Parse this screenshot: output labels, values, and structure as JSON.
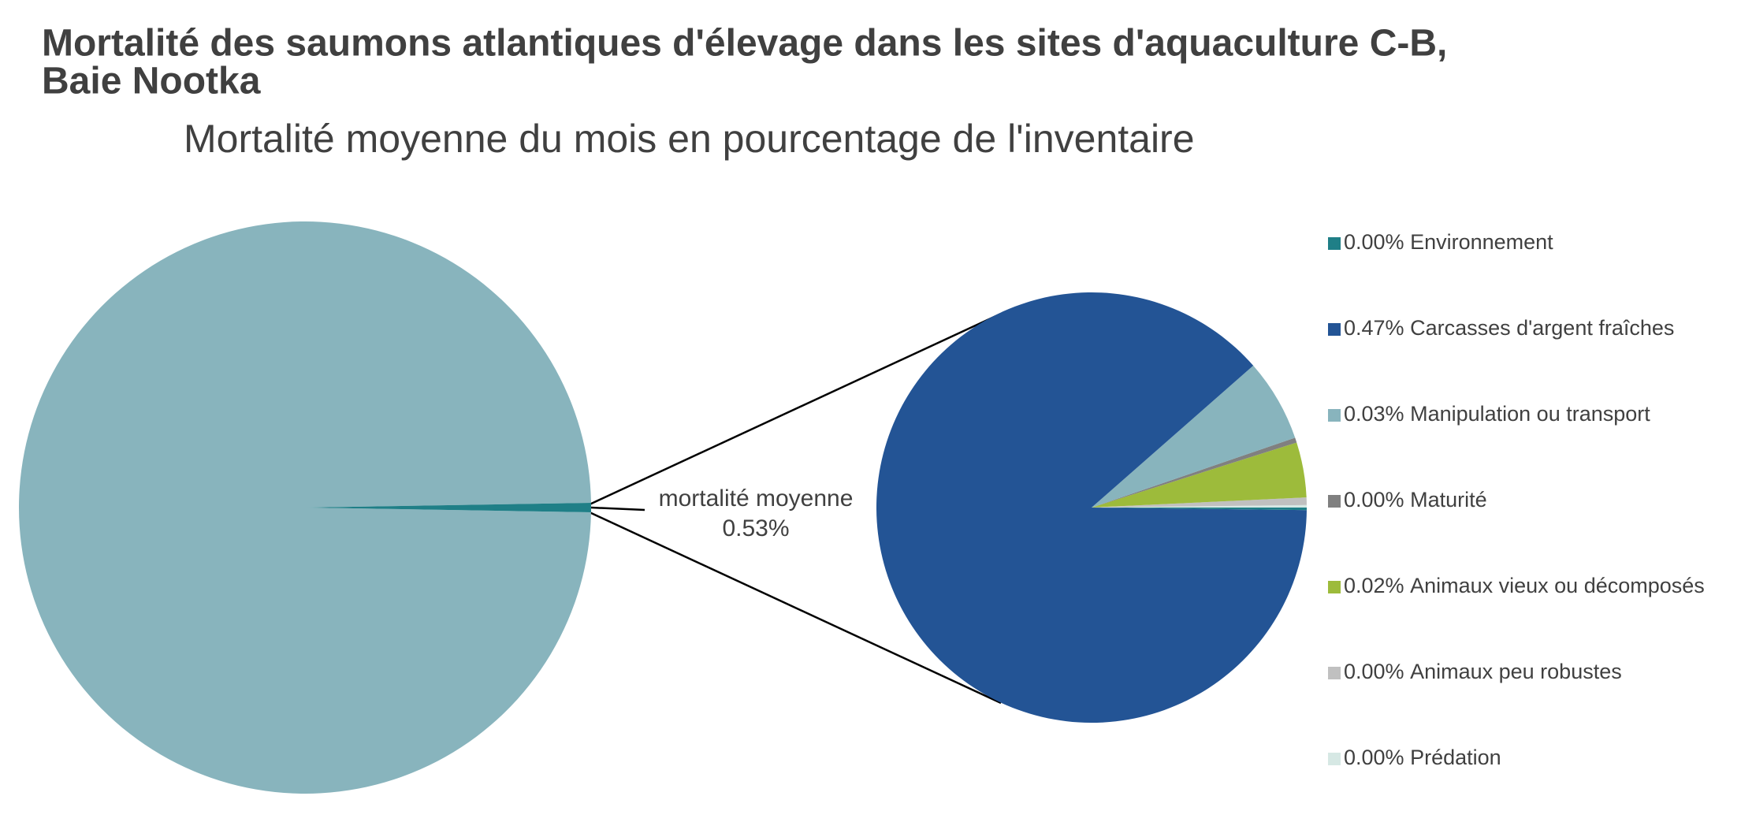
{
  "chart_data": {
    "type": "pie-of-pie",
    "title": "Mortalité des saumons atlantiques d'élevage dans les sites d'aquaculture C-B,",
    "title_line2": "Baie Nootka",
    "subtitle": "Mortalité moyenne du mois en pourcentage de l'inventaire",
    "primary": {
      "values": [
        99.47,
        0.53
      ],
      "colors": [
        "#88b4bd",
        "#1f7f87"
      ],
      "category": "mortalité moyenne",
      "value_label": "0.53%"
    },
    "series": [
      {
        "name": "Environnement",
        "color": "#1f7f87",
        "value": 0.001,
        "value_label": "0.00%"
      },
      {
        "name": "Carcasses d'argent fraîches",
        "color": "#235495",
        "value": 0.47,
        "value_label": "0.47%"
      },
      {
        "name": "Manipulation ou transport",
        "color": "#88b4bd",
        "value": 0.033,
        "value_label": "0.03%"
      },
      {
        "name": "Maturité",
        "color": "#808080",
        "value": 0.002,
        "value_label": "0.00%"
      },
      {
        "name": "Animaux vieux ou décomposés",
        "color": "#9dbb3b",
        "value": 0.022,
        "value_label": "0.02%"
      },
      {
        "name": "Animaux peu robustes",
        "color": "#c0c0c0",
        "value": 0.003,
        "value_label": "0.00%"
      },
      {
        "name": "Prédation",
        "color": "#d6e8e4",
        "value": 0.001,
        "value_label": "0.00%"
      }
    ]
  }
}
